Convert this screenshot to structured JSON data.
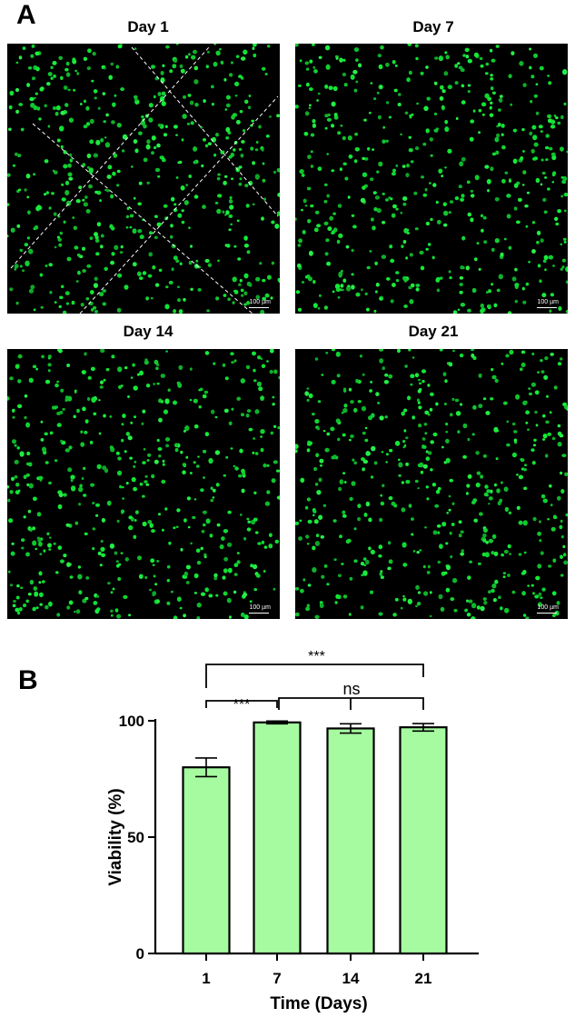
{
  "panel_a": {
    "letter": "A",
    "images": [
      {
        "label": "Day 1",
        "scale": "100 µm",
        "dashed_overlay": true
      },
      {
        "label": "Day 7",
        "scale": "100 µm",
        "dashed_overlay": false
      },
      {
        "label": "Day 14",
        "scale": "100 µm",
        "dashed_overlay": false
      },
      {
        "label": "Day 21",
        "scale": "100 µm",
        "dashed_overlay": false
      }
    ],
    "cell_color": "#19e23a",
    "background_color": "#000000"
  },
  "panel_b": {
    "letter": "B"
  },
  "chart_data": {
    "type": "bar",
    "categories": [
      "1",
      "7",
      "14",
      "21"
    ],
    "values": [
      80,
      99.3,
      96.7,
      97.2
    ],
    "errors": [
      4,
      0.6,
      2,
      1.6
    ],
    "xlabel": "Time (Days)",
    "ylabel": "Viability (%)",
    "ylim": [
      0,
      100
    ],
    "yticks": [
      "0",
      "50",
      "100"
    ],
    "bar_color": "#a6fba1",
    "grid": false,
    "significance": [
      {
        "from": "1",
        "to": "7",
        "label": "***"
      },
      {
        "from": "1",
        "to": "21",
        "label": "***"
      },
      {
        "from": "7",
        "to": [
          "14",
          "21"
        ],
        "label": "ns"
      }
    ]
  }
}
